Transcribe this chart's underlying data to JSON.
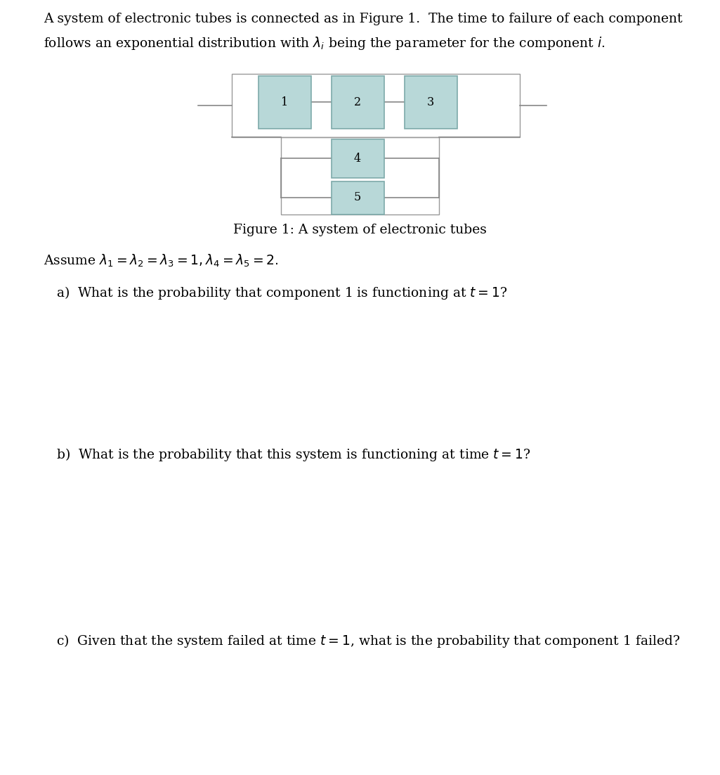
{
  "intro_line1": "A system of electronic tubes is connected as in Figure 1.  The time to failure of each component",
  "intro_line2": "follows an exponential distribution with $\\lambda_i$ being the parameter for the component $i$.",
  "caption": "Figure 1: A system of electronic tubes",
  "assume_text": "Assume $\\lambda_1 = \\lambda_2 = \\lambda_3 = 1, \\lambda_4 = \\lambda_5 = 2.$",
  "q_a": "a)  What is the probability that component 1 is functioning at $t = 1$?",
  "q_b": "b)  What is the probability that this system is functioning at time $t = 1$?",
  "q_c": "c)  Given that the system failed at time $t = 1$, what is the probability that component 1 failed?",
  "box_fill": "#b8d8d8",
  "box_edge": "#7eaaaa",
  "wire_color": "#888888",
  "rect_color": "#999999",
  "bg_color": "#ffffff",
  "fs_body": 13.5,
  "fs_caption": 13.5,
  "fs_label": 11.5
}
